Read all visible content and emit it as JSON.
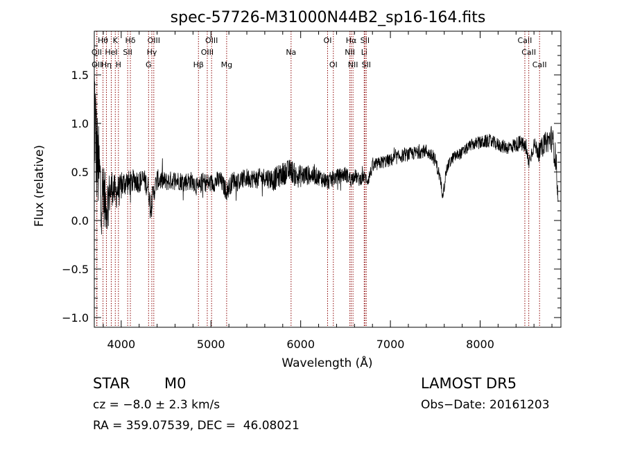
{
  "chart_data": {
    "type": "line",
    "title": "spec-57726-M31000N44B2_sp16-164.fits",
    "xlabel": "Wavelength (Å)",
    "ylabel": "Flux (relative)",
    "xlim": [
      3700,
      8900
    ],
    "ylim": [
      -1.1,
      1.95
    ],
    "xticks": [
      4000,
      5000,
      6000,
      7000,
      8000
    ],
    "yticks": [
      -1.0,
      -0.5,
      0.0,
      0.5,
      1.0,
      1.5
    ],
    "xtick_labels": [
      "4000",
      "5000",
      "6000",
      "7000",
      "8000"
    ],
    "ytick_labels": [
      "−1.0",
      "−0.5",
      "0.0",
      "0.5",
      "1.0",
      "1.5"
    ],
    "line_color": "#000000",
    "marker_color": "#8b0000",
    "spectrum": {
      "x": [
        3700,
        3720,
        3740,
        3760,
        3780,
        3800,
        3820,
        3840,
        3860,
        3880,
        3900,
        3920,
        3940,
        3960,
        3980,
        4000,
        4050,
        4100,
        4150,
        4200,
        4250,
        4300,
        4330,
        4350,
        4400,
        4500,
        4600,
        4700,
        4800,
        4861,
        4900,
        5000,
        5100,
        5175,
        5250,
        5300,
        5400,
        5500,
        5600,
        5700,
        5800,
        5893,
        5950,
        6000,
        6100,
        6200,
        6300,
        6400,
        6500,
        6563,
        6600,
        6650,
        6700,
        6750,
        6800,
        6900,
        7000,
        7100,
        7200,
        7300,
        7400,
        7500,
        7550,
        7580,
        7600,
        7620,
        7650,
        7700,
        7800,
        7900,
        8000,
        8100,
        8200,
        8300,
        8400,
        8450,
        8500,
        8542,
        8600,
        8662,
        8700,
        8750,
        8800,
        8850,
        8870
      ],
      "y": [
        1.3,
        0.75,
        0.55,
        0.45,
        0.25,
        0.3,
        0.2,
        0.15,
        0.25,
        0.3,
        0.35,
        0.3,
        0.28,
        0.32,
        0.3,
        0.35,
        0.4,
        0.38,
        0.42,
        0.4,
        0.42,
        0.35,
        0.1,
        0.25,
        0.42,
        0.4,
        0.42,
        0.4,
        0.41,
        0.32,
        0.4,
        0.38,
        0.42,
        0.3,
        0.42,
        0.4,
        0.44,
        0.43,
        0.45,
        0.42,
        0.48,
        0.52,
        0.45,
        0.46,
        0.47,
        0.45,
        0.4,
        0.45,
        0.48,
        0.42,
        0.47,
        0.42,
        0.45,
        0.42,
        0.55,
        0.6,
        0.62,
        0.66,
        0.68,
        0.7,
        0.72,
        0.62,
        0.45,
        0.28,
        0.35,
        0.5,
        0.58,
        0.65,
        0.7,
        0.78,
        0.8,
        0.82,
        0.78,
        0.75,
        0.78,
        0.8,
        0.76,
        0.6,
        0.78,
        0.7,
        0.78,
        0.82,
        0.85,
        0.6,
        0.0
      ],
      "noise": [
        0.8,
        0.6,
        0.5,
        0.45,
        0.4,
        0.35,
        0.3,
        0.28,
        0.25,
        0.2,
        0.2,
        0.18,
        0.18,
        0.16,
        0.16,
        0.15,
        0.14,
        0.13,
        0.12,
        0.12,
        0.12,
        0.12,
        0.12,
        0.12,
        0.11,
        0.1,
        0.1,
        0.1,
        0.1,
        0.1,
        0.1,
        0.1,
        0.1,
        0.1,
        0.1,
        0.1,
        0.1,
        0.1,
        0.1,
        0.12,
        0.12,
        0.12,
        0.12,
        0.12,
        0.1,
        0.09,
        0.09,
        0.08,
        0.08,
        0.08,
        0.07,
        0.07,
        0.07,
        0.07,
        0.07,
        0.07,
        0.07,
        0.07,
        0.07,
        0.07,
        0.07,
        0.07,
        0.07,
        0.06,
        0.06,
        0.06,
        0.06,
        0.06,
        0.06,
        0.06,
        0.07,
        0.07,
        0.07,
        0.07,
        0.08,
        0.08,
        0.08,
        0.08,
        0.08,
        0.1,
        0.1,
        0.12,
        0.15,
        0.15,
        0.2
      ]
    },
    "line_markers": [
      {
        "label": "Hθ",
        "x": 3797,
        "row": 0
      },
      {
        "label": "K",
        "x": 3934,
        "row": 0
      },
      {
        "label": "Hδ",
        "x": 4102,
        "row": 0
      },
      {
        "label": "OIII",
        "x": 4363,
        "row": 0
      },
      {
        "label": "OIII",
        "x": 5007,
        "row": 0
      },
      {
        "label": "OI",
        "x": 6300,
        "row": 0
      },
      {
        "label": "Hα",
        "x": 6563,
        "row": 0
      },
      {
        "label": "SII",
        "x": 6716,
        "row": 0
      },
      {
        "label": "CaII",
        "x": 8498,
        "row": 0
      },
      {
        "label": "OII",
        "x": 3727,
        "row": 1
      },
      {
        "label": "HeI",
        "x": 3889,
        "row": 1
      },
      {
        "label": "SII",
        "x": 4072,
        "row": 1
      },
      {
        "label": "Hγ",
        "x": 4341,
        "row": 1
      },
      {
        "label": "OIII",
        "x": 4959,
        "row": 1
      },
      {
        "label": "Na",
        "x": 5893,
        "row": 1
      },
      {
        "label": "NII",
        "x": 6548,
        "row": 1
      },
      {
        "label": "Li",
        "x": 6708,
        "row": 1
      },
      {
        "label": "CaII",
        "x": 8542,
        "row": 1
      },
      {
        "label": "OII",
        "x": 3729,
        "row": 2
      },
      {
        "label": "Hη",
        "x": 3835,
        "row": 2
      },
      {
        "label": "H",
        "x": 3969,
        "row": 2
      },
      {
        "label": "G",
        "x": 4305,
        "row": 2
      },
      {
        "label": "Hβ",
        "x": 4861,
        "row": 2
      },
      {
        "label": "Mg",
        "x": 5175,
        "row": 2
      },
      {
        "label": "OI",
        "x": 6364,
        "row": 2
      },
      {
        "label": "NII",
        "x": 6583,
        "row": 2
      },
      {
        "label": "SII",
        "x": 6731,
        "row": 2
      },
      {
        "label": "CaII",
        "x": 8662,
        "row": 2
      }
    ]
  },
  "info": {
    "class": "STAR",
    "subclass": "M0",
    "survey": "LAMOST DR5",
    "cz": "cz = −8.0 ± 2.3 km/s",
    "obs_date": "Obs−Date: 20161203",
    "coords": "RA = 359.07539, DEC =  46.08021"
  }
}
